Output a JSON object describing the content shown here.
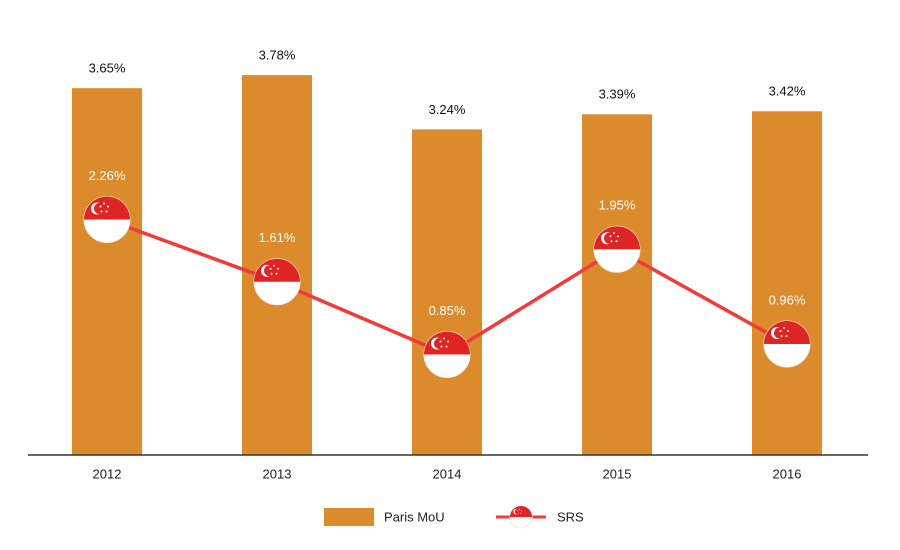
{
  "chart_data": {
    "type": "bar-line",
    "categories": [
      "2012",
      "2013",
      "2014",
      "2015",
      "2016"
    ],
    "ylim": [
      0,
      4
    ],
    "y2lim": [
      -0.2,
      4
    ],
    "series": [
      {
        "name": "Paris MoU",
        "type": "bar",
        "color": "#db8b2c",
        "values": [
          3.65,
          3.78,
          3.24,
          3.39,
          3.42
        ],
        "value_labels": [
          "3.65%",
          "3.78%",
          "3.24%",
          "3.39%",
          "3.42%"
        ]
      },
      {
        "name": "SRS",
        "type": "line",
        "axis": "y2",
        "color": "#f23a3a",
        "values": [
          2.26,
          1.61,
          0.85,
          1.95,
          0.96
        ],
        "value_labels": [
          "2.26%",
          "1.61%",
          "0.85%",
          "1.95%",
          "0.96%"
        ]
      }
    ]
  }
}
